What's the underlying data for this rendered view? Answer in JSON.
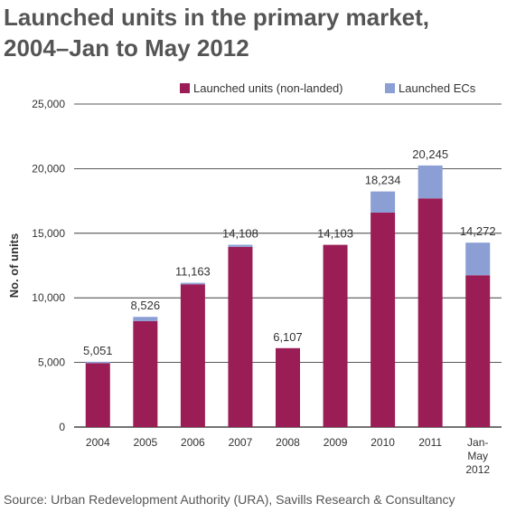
{
  "title_line1": "Launched units in the primary market,",
  "title_line2": "2004–Jan to May 2012",
  "source": "Source: Urban Redevelopment Authority (URA), Savills Research & Consultancy",
  "colors": {
    "non_landed": "#9b1d56",
    "ecs": "#8b9fd4",
    "grid": "#222222"
  },
  "chart_data": {
    "type": "bar",
    "stacked": true,
    "categories": [
      "2004",
      "2005",
      "2006",
      "2007",
      "2008",
      "2009",
      "2010",
      "2011",
      "Jan-May 2012"
    ],
    "category_labels": [
      [
        "2004"
      ],
      [
        "2005"
      ],
      [
        "2006"
      ],
      [
        "2007"
      ],
      [
        "2008"
      ],
      [
        "2009"
      ],
      [
        "2010"
      ],
      [
        "2011"
      ],
      [
        "Jan-",
        "May",
        "2012"
      ]
    ],
    "series": [
      {
        "name": "Launched units (non-landed)",
        "values": [
          4950,
          8200,
          11050,
          13950,
          6107,
          14103,
          16600,
          17700,
          11750
        ]
      },
      {
        "name": "Launched ECs",
        "values": [
          101,
          326,
          113,
          158,
          0,
          0,
          1634,
          2545,
          2522
        ]
      }
    ],
    "totals": [
      5051,
      8526,
      11163,
      14108,
      6107,
      14103,
      18234,
      20245,
      14272
    ],
    "total_labels": [
      "5,051",
      "8,526",
      "11,163",
      "14,108",
      "6,107",
      "14,103",
      "18,234",
      "20,245",
      "14,272"
    ],
    "ylabel": "No. of units",
    "xlabel": "",
    "ylim": [
      0,
      25000
    ],
    "yticks": [
      0,
      5000,
      10000,
      15000,
      20000,
      25000
    ],
    "ytick_labels": [
      "0",
      "5,000",
      "10,000",
      "15,000",
      "20,000",
      "25,000"
    ],
    "grid": true,
    "legend_position": "top-right"
  }
}
